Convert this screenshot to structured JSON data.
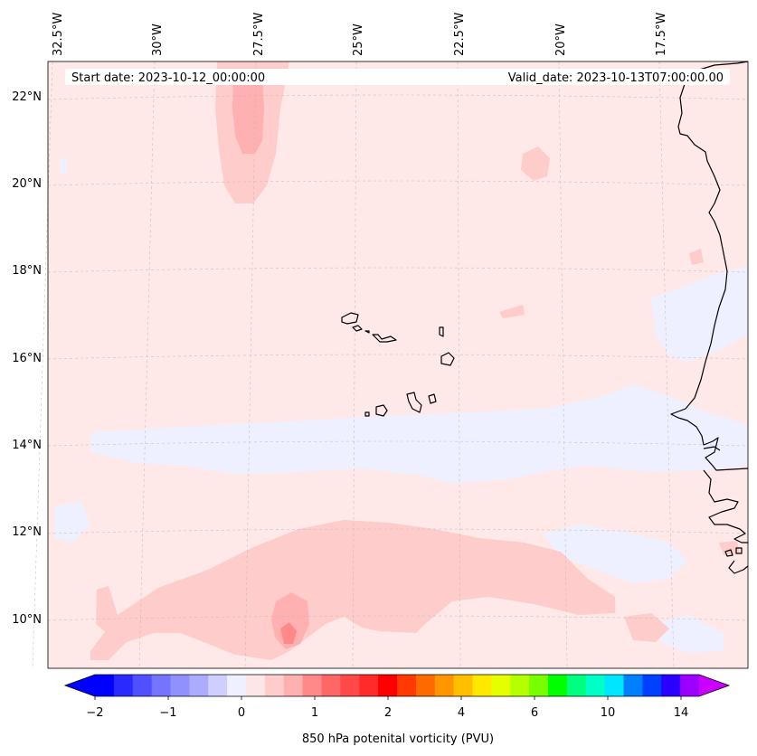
{
  "header": {
    "start_date": "Start date: 2023-10-12_00:00:00",
    "valid_date": "Valid_date: 2023-10-13T07:00:00.00"
  },
  "lon_labels": [
    "32.5°W",
    "30°W",
    "27.5°W",
    "25°W",
    "22.5°W",
    "20°W",
    "17.5°W"
  ],
  "lat_labels": [
    "22°N",
    "20°N",
    "18°N",
    "16°N",
    "14°N",
    "12°N",
    "10°N"
  ],
  "colorbar": {
    "label": "850 hPa potenital vorticity (PVU)",
    "ticks": [
      "−2",
      "−1",
      "0",
      "1",
      "2",
      "4",
      "6",
      "10",
      "14"
    ],
    "colors": [
      "#0000ff",
      "#2a2aff",
      "#5050ff",
      "#7474ff",
      "#9090ff",
      "#ababff",
      "#cfcfff",
      "#eef0ff",
      "#ffe6e6",
      "#ffcccc",
      "#ffb0b0",
      "#ff8888",
      "#ff6666",
      "#ff4848",
      "#ff2a2a",
      "#ff0000",
      "#ff3a00",
      "#ff6a00",
      "#ff9600",
      "#ffbe00",
      "#ffe800",
      "#e6ff00",
      "#b4ff00",
      "#78ff00",
      "#00ff00",
      "#00ff80",
      "#00ffc8",
      "#00e6ff",
      "#0080ff",
      "#0040ff",
      "#2a00ff",
      "#9b00ff"
    ],
    "under_color": "#0000ff",
    "over_color": "#cc00ff"
  },
  "colors": {
    "background": "#ffe8e8",
    "coast": "#000000"
  }
}
